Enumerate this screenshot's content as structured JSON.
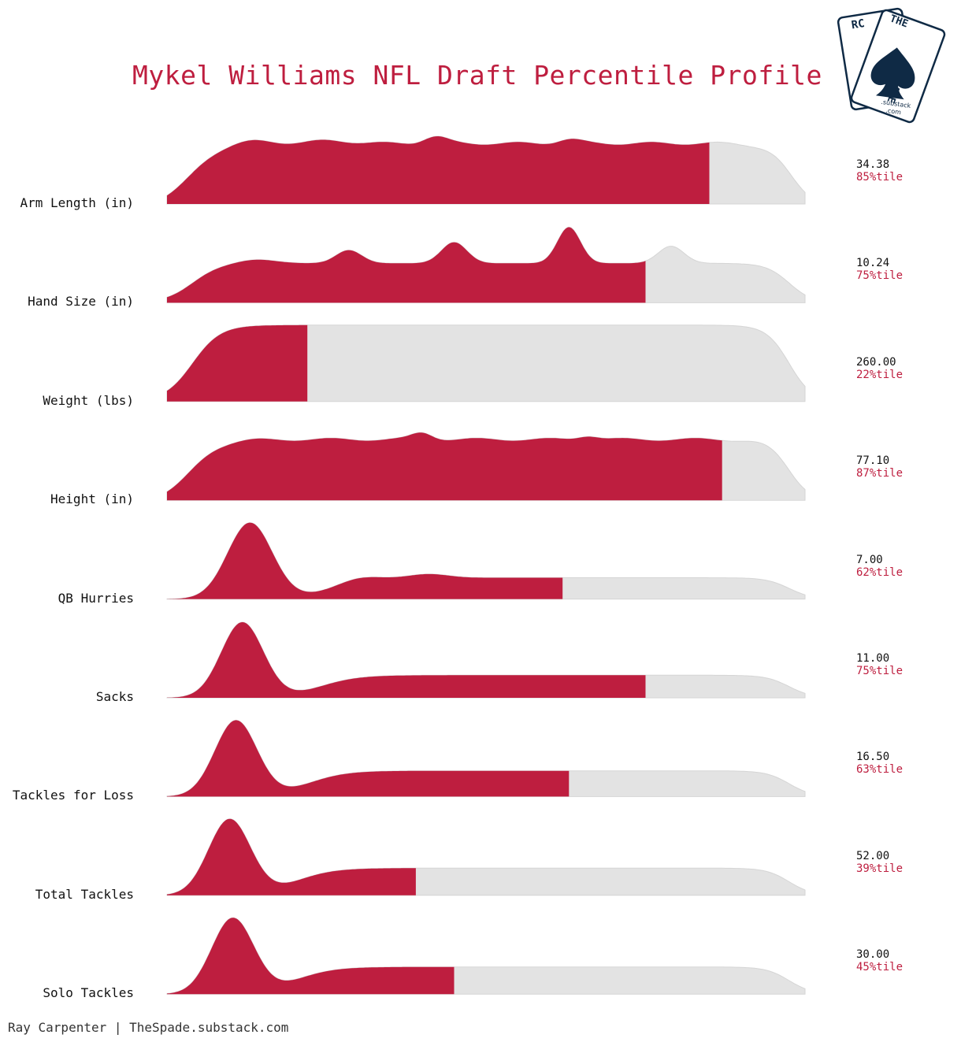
{
  "title": "Mykel Williams NFL Draft Percentile Profile",
  "footer": "Ray Carpenter | TheSpade.substack.com",
  "logo": {
    "left_card_text": "RC",
    "right_card_top": "THE",
    "right_card_bottom": "SPADE",
    "sub1": ".substack",
    "sub2": ".com"
  },
  "colors": {
    "accent": "#be1e3f",
    "remainder": "#e3e3e3",
    "logo": "#0f2a45"
  },
  "chart_data": {
    "type": "ridgeline",
    "title": "Mykel Williams NFL Draft Percentile Profile",
    "metrics": [
      {
        "name": "Arm Length (in)",
        "value": "34.38",
        "percentile_label": "85%tile",
        "percentile": 85
      },
      {
        "name": "Hand Size (in)",
        "value": "10.24",
        "percentile_label": "75%tile",
        "percentile": 75
      },
      {
        "name": "Weight (lbs)",
        "value": "260.00",
        "percentile_label": "22%tile",
        "percentile": 22
      },
      {
        "name": "Height (in)",
        "value": "77.10",
        "percentile_label": "87%tile",
        "percentile": 87
      },
      {
        "name": "QB Hurries",
        "value": "7.00",
        "percentile_label": "62%tile",
        "percentile": 62
      },
      {
        "name": "Sacks",
        "value": "11.00",
        "percentile_label": "75%tile",
        "percentile": 75
      },
      {
        "name": "Tackles for Loss",
        "value": "16.50",
        "percentile_label": "63%tile",
        "percentile": 63
      },
      {
        "name": "Total Tackles",
        "value": "52.00",
        "percentile_label": "39%tile",
        "percentile": 39
      },
      {
        "name": "Solo Tackles",
        "value": "30.00",
        "percentile_label": "45%tile",
        "percentile": 45
      }
    ]
  }
}
